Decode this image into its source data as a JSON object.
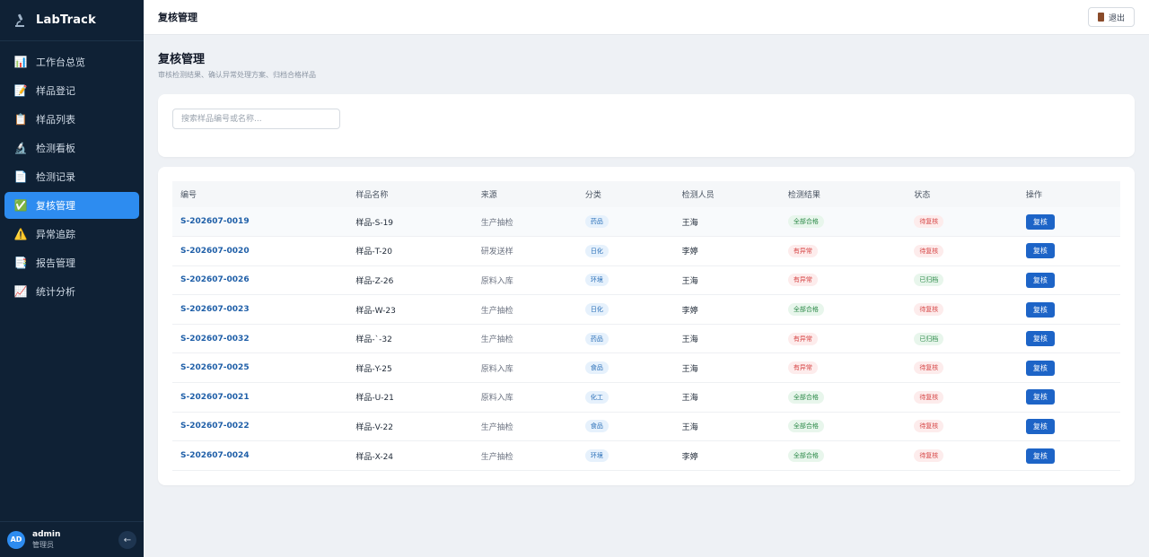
{
  "app": {
    "name": "LabTrack"
  },
  "sidebar": {
    "items": [
      {
        "label": "工作台总览",
        "icon": "bar-chart-icon"
      },
      {
        "label": "样品登记",
        "icon": "memo-icon"
      },
      {
        "label": "样品列表",
        "icon": "clipboard-icon"
      },
      {
        "label": "检测看板",
        "icon": "microscope-icon"
      },
      {
        "label": "检测记录",
        "icon": "document-icon"
      },
      {
        "label": "复核管理",
        "icon": "check-mark-icon",
        "active": true
      },
      {
        "label": "异常追踪",
        "icon": "warning-icon"
      },
      {
        "label": "报告管理",
        "icon": "report-icon"
      },
      {
        "label": "统计分析",
        "icon": "line-chart-icon"
      }
    ],
    "user": {
      "initials": "AD",
      "name": "admin",
      "role": "管理员"
    }
  },
  "topbar": {
    "title": "复核管理",
    "logout_label": "退出"
  },
  "page": {
    "title": "复核管理",
    "subtitle": "审核检测结果、确认异常处理方案、归档合格样品"
  },
  "search": {
    "placeholder": "搜索样品编号或名称..."
  },
  "table": {
    "headers": [
      "编号",
      "样品名称",
      "来源",
      "分类",
      "检测人员",
      "检测结果",
      "状态",
      "操作"
    ],
    "rows": [
      {
        "code": "S-202607-0019",
        "name": "样品-S-19",
        "source": "生产抽检",
        "category": "药品",
        "inspector": "王海",
        "result": "全部合格",
        "status": "待复核",
        "action": "复核"
      },
      {
        "code": "S-202607-0020",
        "name": "样品-T-20",
        "source": "研发送样",
        "category": "日化",
        "inspector": "李婷",
        "result": "有异常",
        "status": "待复核",
        "action": "复核"
      },
      {
        "code": "S-202607-0026",
        "name": "样品-Z-26",
        "source": "原料入库",
        "category": "环境",
        "inspector": "王海",
        "result": "有异常",
        "status": "已归档",
        "action": "复核"
      },
      {
        "code": "S-202607-0023",
        "name": "样品-W-23",
        "source": "生产抽检",
        "category": "日化",
        "inspector": "李婷",
        "result": "全部合格",
        "status": "待复核",
        "action": "复核"
      },
      {
        "code": "S-202607-0032",
        "name": "样品-`-32",
        "source": "生产抽检",
        "category": "药品",
        "inspector": "王海",
        "result": "有异常",
        "status": "已归档",
        "action": "复核"
      },
      {
        "code": "S-202607-0025",
        "name": "样品-Y-25",
        "source": "原料入库",
        "category": "食品",
        "inspector": "王海",
        "result": "有异常",
        "status": "待复核",
        "action": "复核"
      },
      {
        "code": "S-202607-0021",
        "name": "样品-U-21",
        "source": "原料入库",
        "category": "化工",
        "inspector": "王海",
        "result": "全部合格",
        "status": "待复核",
        "action": "复核"
      },
      {
        "code": "S-202607-0022",
        "name": "样品-V-22",
        "source": "生产抽检",
        "category": "食品",
        "inspector": "王海",
        "result": "全部合格",
        "status": "待复核",
        "action": "复核"
      },
      {
        "code": "S-202607-0024",
        "name": "样品-X-24",
        "source": "生产抽检",
        "category": "环境",
        "inspector": "李婷",
        "result": "全部合格",
        "status": "待复核",
        "action": "复核"
      }
    ]
  },
  "colors": {
    "accent": "#2d8cf0",
    "sidebar_bg": "#0f2135",
    "button": "#1d64c7"
  }
}
